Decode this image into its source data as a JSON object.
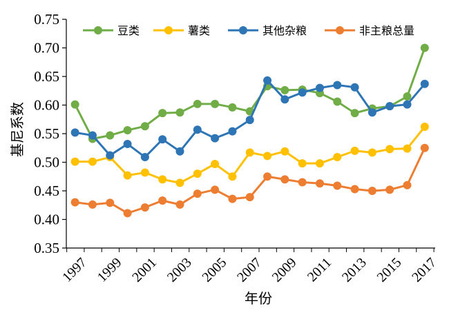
{
  "chart_data": {
    "type": "line",
    "title": "",
    "xlabel": "年份",
    "ylabel": "基尼系数",
    "ylim": [
      0.35,
      0.75
    ],
    "yticks": [
      "0.35",
      "0.40",
      "0.45",
      "0.50",
      "0.55",
      "0.60",
      "0.65",
      "0.70",
      "0.75"
    ],
    "xtick_labels": [
      "1997",
      "1999",
      "2001",
      "2003",
      "2005",
      "2007",
      "2009",
      "2011",
      "2013",
      "2015",
      "2017"
    ],
    "x": [
      1996,
      1997,
      1998,
      1999,
      2000,
      2001,
      2002,
      2003,
      2004,
      2005,
      2006,
      2007,
      2008,
      2009,
      2010,
      2011,
      2012,
      2013,
      2014,
      2015,
      2016
    ],
    "grid": false,
    "legend_position": "top",
    "series": [
      {
        "name": "豆类",
        "color": "#70ad47",
        "values": [
          0.601,
          0.541,
          0.547,
          0.556,
          0.563,
          0.586,
          0.587,
          0.602,
          0.602,
          0.596,
          0.589,
          0.633,
          0.626,
          0.627,
          0.621,
          0.606,
          0.586,
          0.594,
          0.598,
          0.615,
          0.7
        ]
      },
      {
        "name": "薯类",
        "color": "#ffc000",
        "values": [
          0.501,
          0.501,
          0.509,
          0.477,
          0.482,
          0.47,
          0.464,
          0.48,
          0.497,
          0.475,
          0.517,
          0.511,
          0.519,
          0.498,
          0.498,
          0.509,
          0.52,
          0.517,
          0.523,
          0.524,
          0.562
        ]
      },
      {
        "name": "其他杂粮",
        "color": "#2e75b6",
        "values": [
          0.552,
          0.547,
          0.512,
          0.532,
          0.509,
          0.54,
          0.519,
          0.557,
          0.542,
          0.554,
          0.574,
          0.643,
          0.61,
          0.622,
          0.63,
          0.635,
          0.631,
          0.587,
          0.598,
          0.601,
          0.637
        ]
      },
      {
        "name": "非主粮总量",
        "color": "#ed7d31",
        "values": [
          0.43,
          0.426,
          0.429,
          0.411,
          0.421,
          0.433,
          0.426,
          0.445,
          0.452,
          0.436,
          0.439,
          0.475,
          0.47,
          0.465,
          0.463,
          0.459,
          0.453,
          0.45,
          0.452,
          0.46,
          0.525
        ]
      }
    ]
  }
}
